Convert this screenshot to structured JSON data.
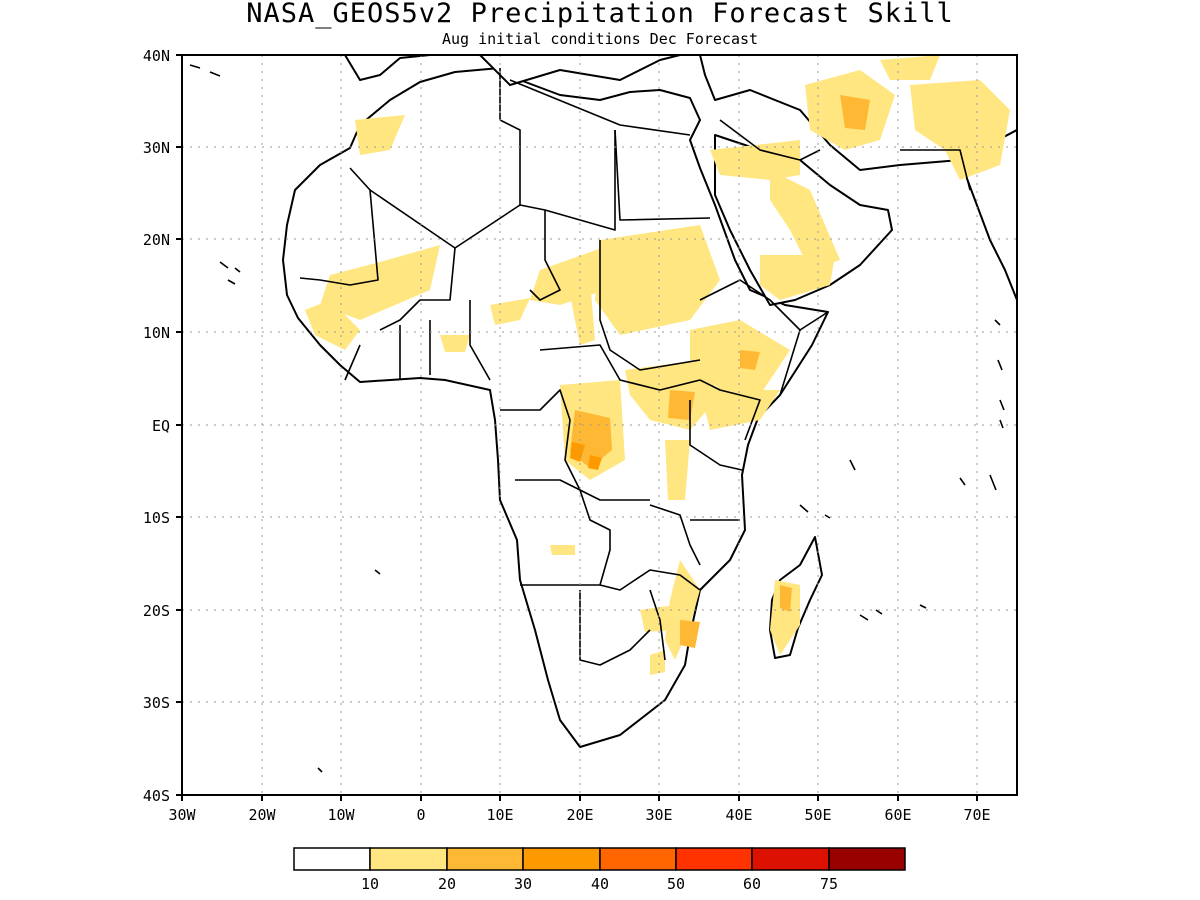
{
  "title": "NASA_GEOS5v2 Precipitation Forecast Skill",
  "subtitle": "Aug initial conditions   Dec Forecast",
  "map": {
    "lon_range": [
      -30,
      75
    ],
    "lat_range": [
      -40,
      40
    ],
    "lat_ticks": [
      "40N",
      "30N",
      "20N",
      "10N",
      "EQ",
      "10S",
      "20S",
      "30S",
      "40S"
    ],
    "lon_ticks": [
      "30W",
      "20W",
      "10W",
      "0",
      "10E",
      "20E",
      "30E",
      "40E",
      "50E",
      "60E",
      "70E"
    ],
    "grid": true,
    "features": [
      "africa-landmass",
      "arabian-peninsula",
      "madagascar",
      "country-borders"
    ]
  },
  "colorbar": {
    "colors": [
      "#ffffff",
      "#ffe680",
      "#ffb833",
      "#ff9900",
      "#ff6600",
      "#ff3300",
      "#dd1100",
      "#990000"
    ],
    "labels": [
      "10",
      "20",
      "30",
      "40",
      "50",
      "60",
      "75"
    ]
  }
}
